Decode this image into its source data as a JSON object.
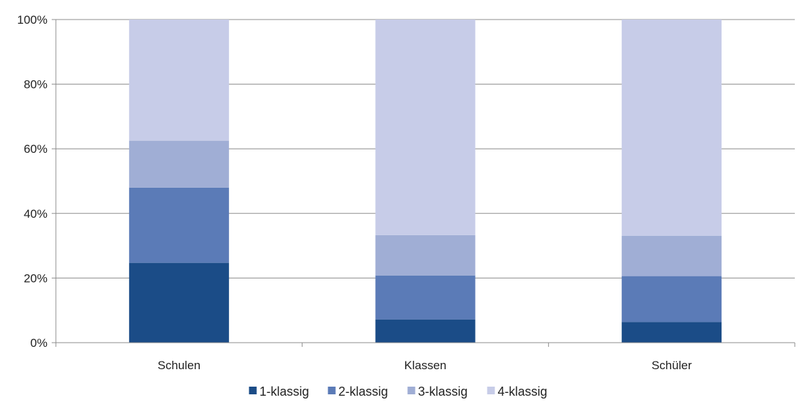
{
  "chart_data": {
    "type": "bar",
    "stacked": true,
    "percent": true,
    "categories": [
      "Schulen",
      "Klassen",
      "Schüler"
    ],
    "series": [
      {
        "name": "1-klassig",
        "color": "#1b4c87",
        "values": [
          24.7,
          7.2,
          6.4
        ]
      },
      {
        "name": "2-klassig",
        "color": "#5b7bb7",
        "values": [
          23.3,
          13.6,
          14.2
        ]
      },
      {
        "name": "3-klassig",
        "color": "#a0aed5",
        "values": [
          14.5,
          12.5,
          12.5
        ]
      },
      {
        "name": "4-klassig",
        "color": "#c7cce8",
        "values": [
          37.5,
          66.7,
          66.9
        ]
      }
    ],
    "ylim": [
      0,
      100
    ],
    "yticks": [
      "0%",
      "20%",
      "40%",
      "60%",
      "80%",
      "100%"
    ],
    "grid": true,
    "legend": "bottom",
    "title": "",
    "xlabel": "",
    "ylabel": ""
  }
}
